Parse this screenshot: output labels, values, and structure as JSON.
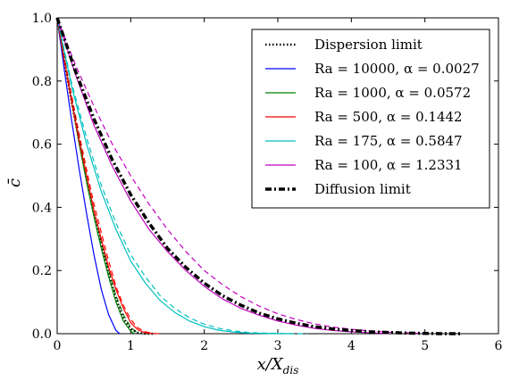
{
  "chart_data": {
    "type": "line",
    "xlabel": "x/X_dis",
    "ylabel": "c̄",
    "xlim": [
      0,
      6
    ],
    "ylim": [
      0,
      1.0
    ],
    "xticks": [
      "0",
      "1",
      "2",
      "3",
      "4",
      "5",
      "6"
    ],
    "yticks": [
      "0.0",
      "0.2",
      "0.4",
      "0.6",
      "0.8",
      "1.0"
    ],
    "legend_position": "top-right",
    "grid": false,
    "series": [
      {
        "name": "Dispersion limit",
        "color": "#000000",
        "style": "dotted",
        "x": [
          0,
          0.1,
          0.2,
          0.3,
          0.4,
          0.5,
          0.6,
          0.7,
          0.8,
          0.9,
          1.0,
          1.1,
          1.2,
          1.3
        ],
        "y": [
          1.0,
          0.86,
          0.73,
          0.61,
          0.49,
          0.38,
          0.28,
          0.19,
          0.11,
          0.05,
          0.015,
          0.003,
          0.0,
          0.0
        ]
      },
      {
        "name": "Ra = 10000, α = 0.0027",
        "color": "#0000ff",
        "style": "solid",
        "x": [
          0,
          0.1,
          0.2,
          0.3,
          0.4,
          0.5,
          0.6,
          0.7,
          0.8,
          0.85
        ],
        "y": [
          1.0,
          0.83,
          0.67,
          0.52,
          0.38,
          0.25,
          0.14,
          0.06,
          0.01,
          0.0
        ]
      },
      {
        "name": "Ra = 1000, α = 0.0572",
        "color": "#008000",
        "style": "solid",
        "x": [
          0,
          0.1,
          0.2,
          0.3,
          0.4,
          0.5,
          0.6,
          0.7,
          0.8,
          0.9,
          1.0,
          1.05
        ],
        "y": [
          1.0,
          0.86,
          0.73,
          0.6,
          0.48,
          0.37,
          0.27,
          0.18,
          0.1,
          0.04,
          0.008,
          0.0
        ]
      },
      {
        "name": "Ra = 500, α = 0.1442",
        "color": "#ff0000",
        "style": "solid",
        "x": [
          0,
          0.1,
          0.2,
          0.3,
          0.4,
          0.5,
          0.6,
          0.7,
          0.8,
          0.9,
          1.0,
          1.1,
          1.2,
          1.3
        ],
        "y": [
          1.0,
          0.86,
          0.73,
          0.61,
          0.5,
          0.39,
          0.3,
          0.21,
          0.14,
          0.08,
          0.035,
          0.012,
          0.003,
          0.0
        ]
      },
      {
        "name": "Ra = 175, α = 0.5847",
        "color": "#00bfbf",
        "style": "solid",
        "x": [
          0,
          0.2,
          0.4,
          0.6,
          0.8,
          1.0,
          1.2,
          1.4,
          1.6,
          1.8,
          2.0,
          2.2,
          2.4,
          2.6,
          2.8,
          3.0,
          3.2
        ],
        "y": [
          1.0,
          0.78,
          0.6,
          0.45,
          0.33,
          0.23,
          0.16,
          0.105,
          0.067,
          0.04,
          0.022,
          0.011,
          0.005,
          0.002,
          0.001,
          0.0,
          0.0
        ]
      },
      {
        "name": "Ra = 100, α = 1.2331",
        "color": "#bf00bf",
        "style": "solid",
        "x": [
          0,
          0.25,
          0.5,
          0.75,
          1.0,
          1.25,
          1.5,
          1.75,
          2.0,
          2.25,
          2.5,
          2.75,
          3.0,
          3.25,
          3.5,
          3.75,
          4.0,
          4.25,
          4.5
        ],
        "y": [
          1.0,
          0.82,
          0.66,
          0.53,
          0.42,
          0.33,
          0.26,
          0.2,
          0.15,
          0.11,
          0.08,
          0.058,
          0.04,
          0.027,
          0.017,
          0.01,
          0.006,
          0.003,
          0.0
        ]
      },
      {
        "name": "Diffusion limit",
        "color": "#000000",
        "style": "dashdot",
        "x": [
          0,
          0.25,
          0.5,
          0.75,
          1.0,
          1.25,
          1.5,
          1.75,
          2.0,
          2.25,
          2.5,
          2.75,
          3.0,
          3.25,
          3.5,
          3.75,
          4.0,
          4.25,
          4.5,
          4.75,
          5.0,
          5.25,
          5.5
        ],
        "y": [
          1.0,
          0.83,
          0.68,
          0.55,
          0.44,
          0.35,
          0.27,
          0.21,
          0.16,
          0.12,
          0.09,
          0.065,
          0.047,
          0.033,
          0.022,
          0.015,
          0.01,
          0.006,
          0.004,
          0.002,
          0.001,
          0.0,
          0.0
        ]
      }
    ],
    "extra_dashed_series": [
      {
        "color": "#00bfbf",
        "style": "dashed",
        "x": [
          0,
          0.2,
          0.4,
          0.6,
          0.8,
          1.0,
          1.2,
          1.4,
          1.6,
          1.8,
          2.0,
          2.2,
          2.4,
          2.6,
          2.8,
          3.0,
          3.2,
          3.4
        ],
        "y": [
          1.0,
          0.79,
          0.62,
          0.47,
          0.35,
          0.25,
          0.18,
          0.12,
          0.08,
          0.05,
          0.03,
          0.017,
          0.009,
          0.004,
          0.002,
          0.001,
          0.0,
          0.0
        ]
      },
      {
        "color": "#bf00bf",
        "style": "dashed",
        "x": [
          0,
          0.25,
          0.5,
          0.75,
          1.0,
          1.25,
          1.5,
          1.75,
          2.0,
          2.25,
          2.5,
          2.75,
          3.0,
          3.25,
          3.5,
          3.75,
          4.0,
          4.25,
          4.5,
          4.75,
          5.0
        ],
        "y": [
          1.0,
          0.85,
          0.72,
          0.6,
          0.5,
          0.41,
          0.33,
          0.26,
          0.2,
          0.155,
          0.117,
          0.087,
          0.063,
          0.045,
          0.031,
          0.021,
          0.014,
          0.009,
          0.005,
          0.003,
          0.0
        ]
      },
      {
        "color": "#008000",
        "style": "dashed",
        "x": [
          0,
          0.1,
          0.2,
          0.3,
          0.4,
          0.5,
          0.6,
          0.7,
          0.8,
          0.9,
          1.0,
          1.1
        ],
        "y": [
          1.0,
          0.87,
          0.74,
          0.62,
          0.5,
          0.39,
          0.29,
          0.2,
          0.12,
          0.06,
          0.02,
          0.0
        ]
      },
      {
        "color": "#ff0000",
        "style": "dashed",
        "x": [
          0,
          0.1,
          0.2,
          0.3,
          0.4,
          0.5,
          0.6,
          0.7,
          0.8,
          0.9,
          1.0,
          1.1,
          1.2,
          1.3,
          1.4
        ],
        "y": [
          1.0,
          0.87,
          0.75,
          0.63,
          0.52,
          0.41,
          0.32,
          0.23,
          0.15,
          0.09,
          0.045,
          0.018,
          0.006,
          0.001,
          0.0
        ]
      }
    ]
  }
}
